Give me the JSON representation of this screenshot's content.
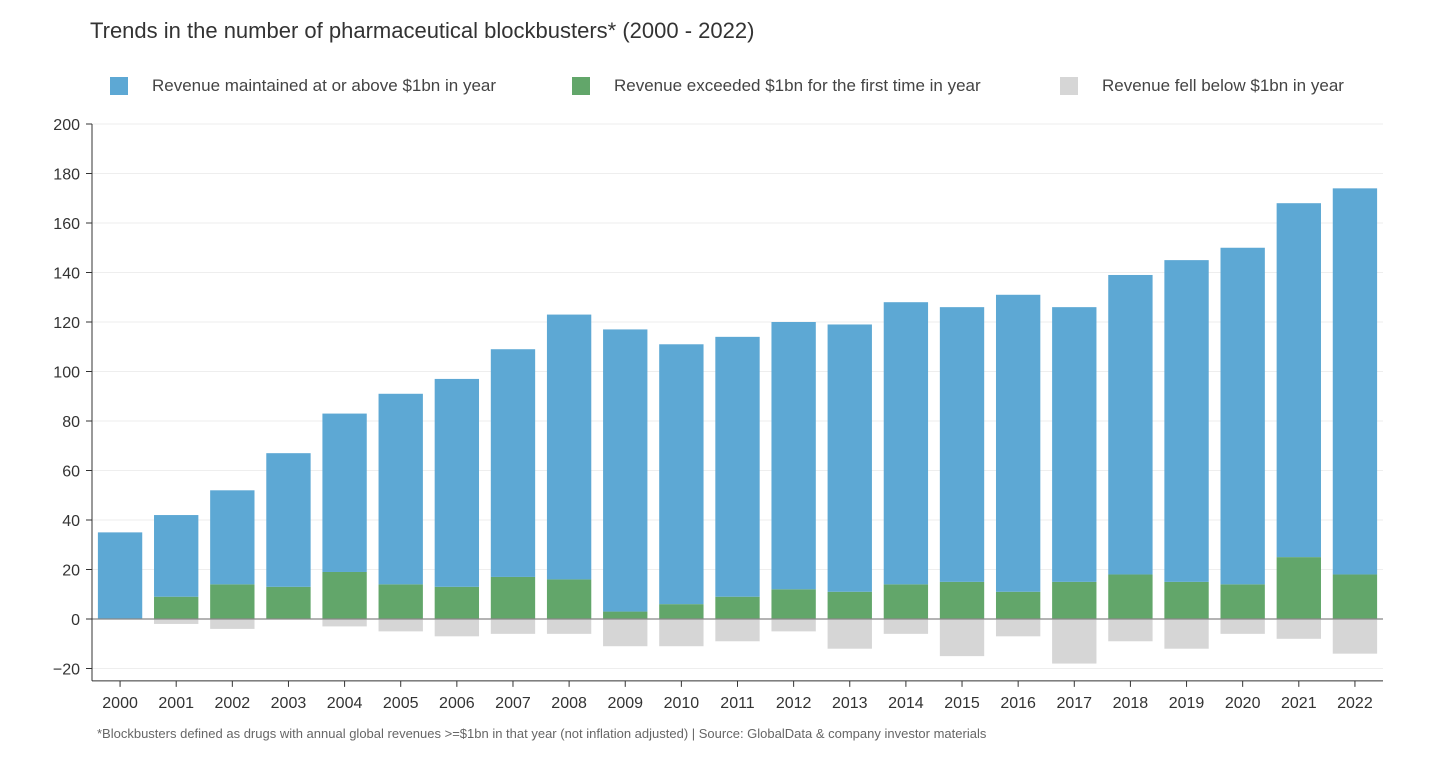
{
  "title": "Trends in the number of pharmaceutical blockbusters* (2000 - 2022)",
  "footnote": "*Blockbusters defined as drugs with annual global revenues >=$1bn in that year (not inflation adjusted) | Source: GlobalData & company investor materials",
  "colors": {
    "maintained": "#5da8d4",
    "first_time": "#62a66a",
    "fell_below": "#d6d6d6",
    "axis": "#333333",
    "grid": "#eeeeee"
  },
  "legend": [
    {
      "label": "Revenue maintained at or above $1bn in year",
      "color": "#5da8d4"
    },
    {
      "label": "Revenue exceeded $1bn for the first time in year",
      "color": "#62a66a"
    },
    {
      "label": "Revenue fell below $1bn in year",
      "color": "#d6d6d6"
    }
  ],
  "chart_data": {
    "type": "bar",
    "stacked": true,
    "categories": [
      "2000",
      "2001",
      "2002",
      "2003",
      "2004",
      "2005",
      "2006",
      "2007",
      "2008",
      "2009",
      "2010",
      "2011",
      "2012",
      "2013",
      "2014",
      "2015",
      "2016",
      "2017",
      "2018",
      "2019",
      "2020",
      "2021",
      "2022"
    ],
    "series": [
      {
        "name": "Revenue exceeded $1bn for the first time in year",
        "values": [
          0,
          9,
          14,
          13,
          19,
          14,
          13,
          17,
          16,
          3,
          6,
          9,
          12,
          11,
          14,
          15,
          11,
          15,
          18,
          15,
          14,
          25,
          18
        ]
      },
      {
        "name": "Revenue maintained at or above $1bn in year",
        "values": [
          35,
          33,
          38,
          54,
          64,
          77,
          84,
          92,
          107,
          114,
          105,
          105,
          108,
          108,
          114,
          111,
          120,
          111,
          121,
          130,
          136,
          143,
          156
        ]
      },
      {
        "name": "Revenue fell below $1bn in year",
        "values": [
          0,
          -2,
          -4,
          0,
          -3,
          -5,
          -7,
          -6,
          -6,
          -11,
          -11,
          -9,
          -5,
          -12,
          -6,
          -15,
          -7,
          -18,
          -9,
          -12,
          -6,
          -8,
          -14
        ]
      }
    ],
    "ylim": [
      -25,
      200
    ],
    "yticks": [
      200,
      180,
      160,
      140,
      120,
      100,
      80,
      60,
      40,
      20,
      0,
      -20
    ],
    "grid": true,
    "legend_position": "top"
  }
}
